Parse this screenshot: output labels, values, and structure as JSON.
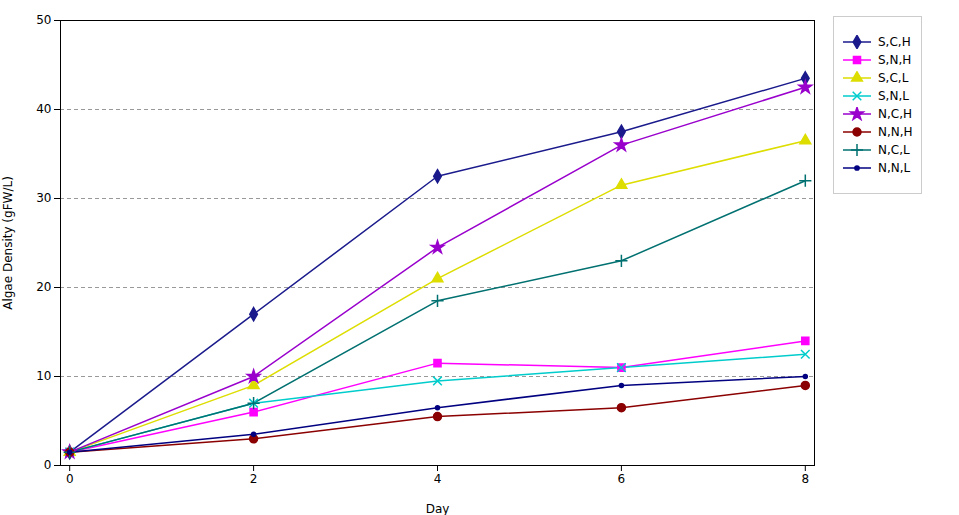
{
  "chart_data": {
    "type": "line",
    "x": [
      0,
      2,
      4,
      6,
      8
    ],
    "series": [
      {
        "name": "S,C,H",
        "color": "#1A1A8C",
        "marker": "diamond",
        "values": [
          1.5,
          17,
          32.5,
          37.5,
          43.5
        ]
      },
      {
        "name": "S,N,H",
        "color": "#FF00FF",
        "marker": "square",
        "values": [
          1.5,
          6,
          11.5,
          11,
          14
        ]
      },
      {
        "name": "S,C,L",
        "color": "#DDDD00",
        "marker": "triangle",
        "values": [
          1.5,
          9,
          21,
          31.5,
          36.5
        ]
      },
      {
        "name": "S,N,L",
        "color": "#00CCCC",
        "marker": "x",
        "values": [
          1.5,
          7,
          9.5,
          11,
          12.5
        ]
      },
      {
        "name": "N,C,H",
        "color": "#9900CC",
        "marker": "star",
        "values": [
          1.5,
          10,
          24.5,
          36,
          42.5
        ]
      },
      {
        "name": "N,N,H",
        "color": "#8B0000",
        "marker": "circle",
        "values": [
          1.5,
          3,
          5.5,
          6.5,
          9
        ]
      },
      {
        "name": "N,C,L",
        "color": "#007070",
        "marker": "plus",
        "values": [
          1.5,
          7,
          18.5,
          23,
          32
        ]
      },
      {
        "name": "N,N,L",
        "color": "#000080",
        "marker": "point",
        "values": [
          1.5,
          3.5,
          6.5,
          9,
          10
        ]
      }
    ],
    "xlabel": "Day",
    "ylabel": "Algae Density (gFW/L)",
    "xlim": [
      -0.1,
      8.1
    ],
    "ylim": [
      0,
      50
    ],
    "xticks": [
      0,
      2,
      4,
      6,
      8
    ],
    "yticks": [
      0,
      10,
      20,
      30,
      40,
      50
    ],
    "grid": "y",
    "legend": "right"
  }
}
